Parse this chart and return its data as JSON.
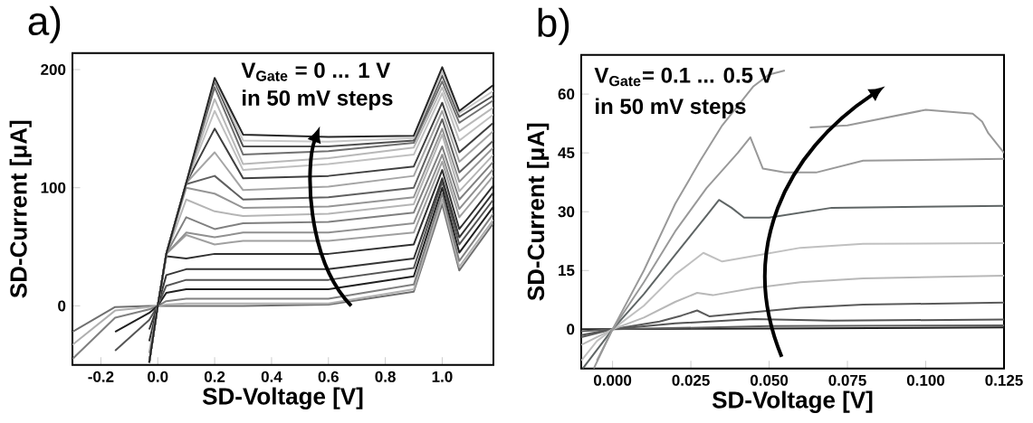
{
  "chart_data": [
    {
      "type": "line",
      "title": "a)",
      "xlabel": "SD-Voltage [V]",
      "ylabel": "SD-Current [μA]",
      "annotations": [
        "V$_{Gate}$ = 0 ... 1 V",
        "in 50 mV steps"
      ],
      "marker": "none",
      "line_style": "solid",
      "xlim": [
        -0.3,
        1.18
      ],
      "ylim": [
        -50,
        214
      ],
      "xticks": [
        -0.2,
        {
          "value": 0,
          "label": "0.0"
        },
        0.2,
        0.4,
        0.6,
        0.8,
        {
          "value": 1,
          "label": "1.0"
        }
      ],
      "yticks": [
        0,
        100,
        200
      ],
      "x": [
        -0.3,
        -0.15,
        -0.03,
        0,
        0.03,
        0.1,
        0.2,
        0.3,
        0.6,
        0.9,
        1.0,
        1.06,
        1.18
      ],
      "series": [
        {
          "color": "#707070",
          "values": [
            -22,
            -1,
            0,
            0,
            0,
            0,
            0,
            0,
            1,
            12,
            86,
            30,
            70
          ]
        },
        {
          "color": "#b0b0b0",
          "values": [
            -33,
            -4,
            -1,
            0,
            1,
            2,
            2,
            2,
            2,
            14,
            90,
            33,
            73
          ]
        },
        {
          "color": "#808080",
          "values": [
            -45,
            -10,
            -3,
            0,
            4,
            6,
            6,
            6,
            6,
            18,
            95,
            38,
            78
          ]
        },
        {
          "color": "#202020",
          "values": [
            null,
            -22,
            -6,
            0,
            11,
            14,
            14,
            14,
            14,
            25,
            100,
            45,
            84
          ]
        },
        {
          "color": "#555555",
          "values": [
            null,
            -38,
            -12,
            0,
            17,
            22,
            22,
            22,
            22,
            32,
            105,
            52,
            90
          ]
        },
        {
          "color": "#353535",
          "values": [
            null,
            null,
            -20,
            0,
            26,
            31,
            31,
            31,
            31,
            40,
            108,
            58,
            96
          ]
        },
        {
          "color": "#303030",
          "values": [
            null,
            null,
            -30,
            0,
            42,
            40,
            44,
            44,
            44,
            52,
            115,
            65,
            102
          ]
        },
        {
          "color": "#a0a0a0",
          "values": [
            null,
            null,
            -40,
            0,
            44,
            60,
            52,
            55,
            55,
            62,
            122,
            75,
            110
          ]
        },
        {
          "color": "#909090",
          "values": [
            null,
            null,
            -48,
            0,
            44,
            62,
            58,
            62,
            62,
            70,
            128,
            82,
            116
          ]
        },
        {
          "color": "#808080",
          "values": [
            null,
            null,
            null,
            0,
            44,
            75,
            65,
            70,
            71,
            79,
            135,
            90,
            122
          ]
        },
        {
          "color": "#b5b5b5",
          "values": [
            null,
            null,
            -48,
            0,
            44,
            90,
            80,
            76,
            78,
            86,
            145,
            97,
            128
          ]
        },
        {
          "color": "#959595",
          "values": [
            null,
            null,
            -48,
            0,
            44,
            100,
            95,
            83,
            84,
            92,
            150,
            105,
            134
          ]
        },
        {
          "color": "#606060",
          "values": [
            null,
            null,
            -48,
            0,
            44,
            103,
            110,
            90,
            92,
            100,
            158,
            113,
            140
          ]
        },
        {
          "color": "#a5a5a5",
          "values": [
            null,
            null,
            -48,
            0,
            44,
            104,
            130,
            98,
            101,
            110,
            165,
            122,
            148
          ]
        },
        {
          "color": "#404040",
          "values": [
            null,
            null,
            -48,
            0,
            44,
            104,
            150,
            108,
            110,
            118,
            172,
            130,
            155
          ]
        },
        {
          "color": "#c0c0c0",
          "values": [
            null,
            null,
            -48,
            0,
            44,
            104,
            165,
            115,
            120,
            128,
            180,
            140,
            162
          ]
        },
        {
          "color": "#b8b8b8",
          "values": [
            null,
            null,
            -48,
            0,
            44,
            104,
            175,
            120,
            125,
            134,
            185,
            148,
            168
          ]
        },
        {
          "color": "#707070",
          "values": [
            null,
            null,
            -48,
            0,
            44,
            104,
            185,
            128,
            131,
            138,
            190,
            155,
            174
          ]
        },
        {
          "color": "#505050",
          "values": [
            null,
            null,
            -48,
            0,
            44,
            104,
            190,
            135,
            135,
            140,
            195,
            160,
            178
          ]
        },
        {
          "color": "#c8c8c8",
          "values": [
            null,
            null,
            -48,
            0,
            44,
            104,
            192,
            140,
            139,
            142,
            198,
            163,
            182
          ]
        },
        {
          "color": "#252525",
          "values": [
            null,
            null,
            -48,
            0,
            44,
            104,
            193,
            145,
            143,
            144,
            202,
            165,
            187
          ]
        }
      ]
    },
    {
      "type": "line",
      "title": "b)",
      "xlabel": "SD-Voltage [V]",
      "ylabel": "SD-Current [μA]",
      "annotations": [
        "V$_{Gate}$= 0.1 ... 0.5 V",
        "in 50 mV steps"
      ],
      "marker": "none",
      "line_style": "solid",
      "xlim": [
        -0.01,
        0.125
      ],
      "ylim": [
        -10,
        70
      ],
      "xticks": [
        {
          "value": 0,
          "label": "0.000"
        },
        0.025,
        {
          "value": 0.05,
          "label": "0.050"
        },
        0.075,
        {
          "value": 0.1,
          "label": "0.100"
        },
        0.125
      ],
      "yticks": [
        0,
        15,
        30,
        45,
        60
      ],
      "series": [
        {
          "color": "#202020",
          "x": [
            -0.01,
            0.05,
            0.125
          ],
          "values": [
            0,
            0.2,
            0.5
          ]
        },
        {
          "color": "#606060",
          "x": [
            -0.01,
            0,
            0.05,
            0.125
          ],
          "values": [
            -0.5,
            0,
            0.8,
            1.0
          ]
        },
        {
          "color": "#555555",
          "x": [
            -0.01,
            0,
            0.02,
            0.045,
            0.07,
            0.125
          ],
          "values": [
            -1.5,
            0,
            1.5,
            2.6,
            2.2,
            2.5
          ]
        },
        {
          "color": "#5a5a5a",
          "x": [
            -0.01,
            0,
            0.015,
            0.022,
            0.027,
            0.031,
            0.04,
            0.06,
            0.08,
            0.125
          ],
          "values": [
            -2,
            0,
            2,
            3.5,
            4.8,
            3.3,
            4,
            5.5,
            6.3,
            6.8
          ]
        },
        {
          "color": "#b8b8b8",
          "x": [
            -0.01,
            0,
            0.01,
            0.02,
            0.027,
            0.032,
            0.045,
            0.06,
            0.08,
            0.125
          ],
          "values": [
            -4,
            0,
            3,
            7,
            9.3,
            8.7,
            10.5,
            12,
            13,
            13.7
          ]
        },
        {
          "color": "#c0c0c0",
          "x": [
            -0.01,
            -0.005,
            0,
            0.01,
            0.02,
            0.029,
            0.035,
            0.045,
            0.06,
            0.08,
            0.125
          ],
          "values": [
            -8,
            -3,
            0,
            6,
            14,
            19.5,
            17.3,
            18.7,
            20.8,
            21.8,
            22
          ]
        },
        {
          "color": "#5f6565",
          "x": [
            -0.0095,
            0,
            0.01,
            0.02,
            0.03,
            0.034,
            0.038,
            0.042,
            0.05,
            0.07,
            0.125
          ],
          "values": [
            -10,
            0,
            9,
            19,
            29,
            33,
            31,
            28.5,
            28.5,
            31,
            31.5
          ]
        },
        {
          "color": "#999999",
          "x": [
            -0.006,
            0,
            0.01,
            0.02,
            0.03,
            0.04,
            0.044,
            0.048,
            0.055,
            0.065,
            0.08,
            0.125
          ],
          "values": [
            -10,
            0,
            12,
            25,
            36,
            45,
            49,
            41,
            40,
            40,
            43,
            43.5
          ]
        },
        {
          "color": "#999999",
          "x": [
            -0.005,
            0,
            0.01,
            0.02,
            0.028,
            0.035,
            0.045,
            0.05,
            0.055,
            0.058,
            0.063,
            0.075,
            0.1,
            0.115,
            0.118,
            0.12,
            0.125
          ],
          "values": [
            -8,
            0,
            15,
            32,
            43,
            52,
            62,
            65,
            66,
            null,
            51.5,
            52,
            56,
            55,
            53,
            50,
            45
          ]
        }
      ]
    }
  ]
}
